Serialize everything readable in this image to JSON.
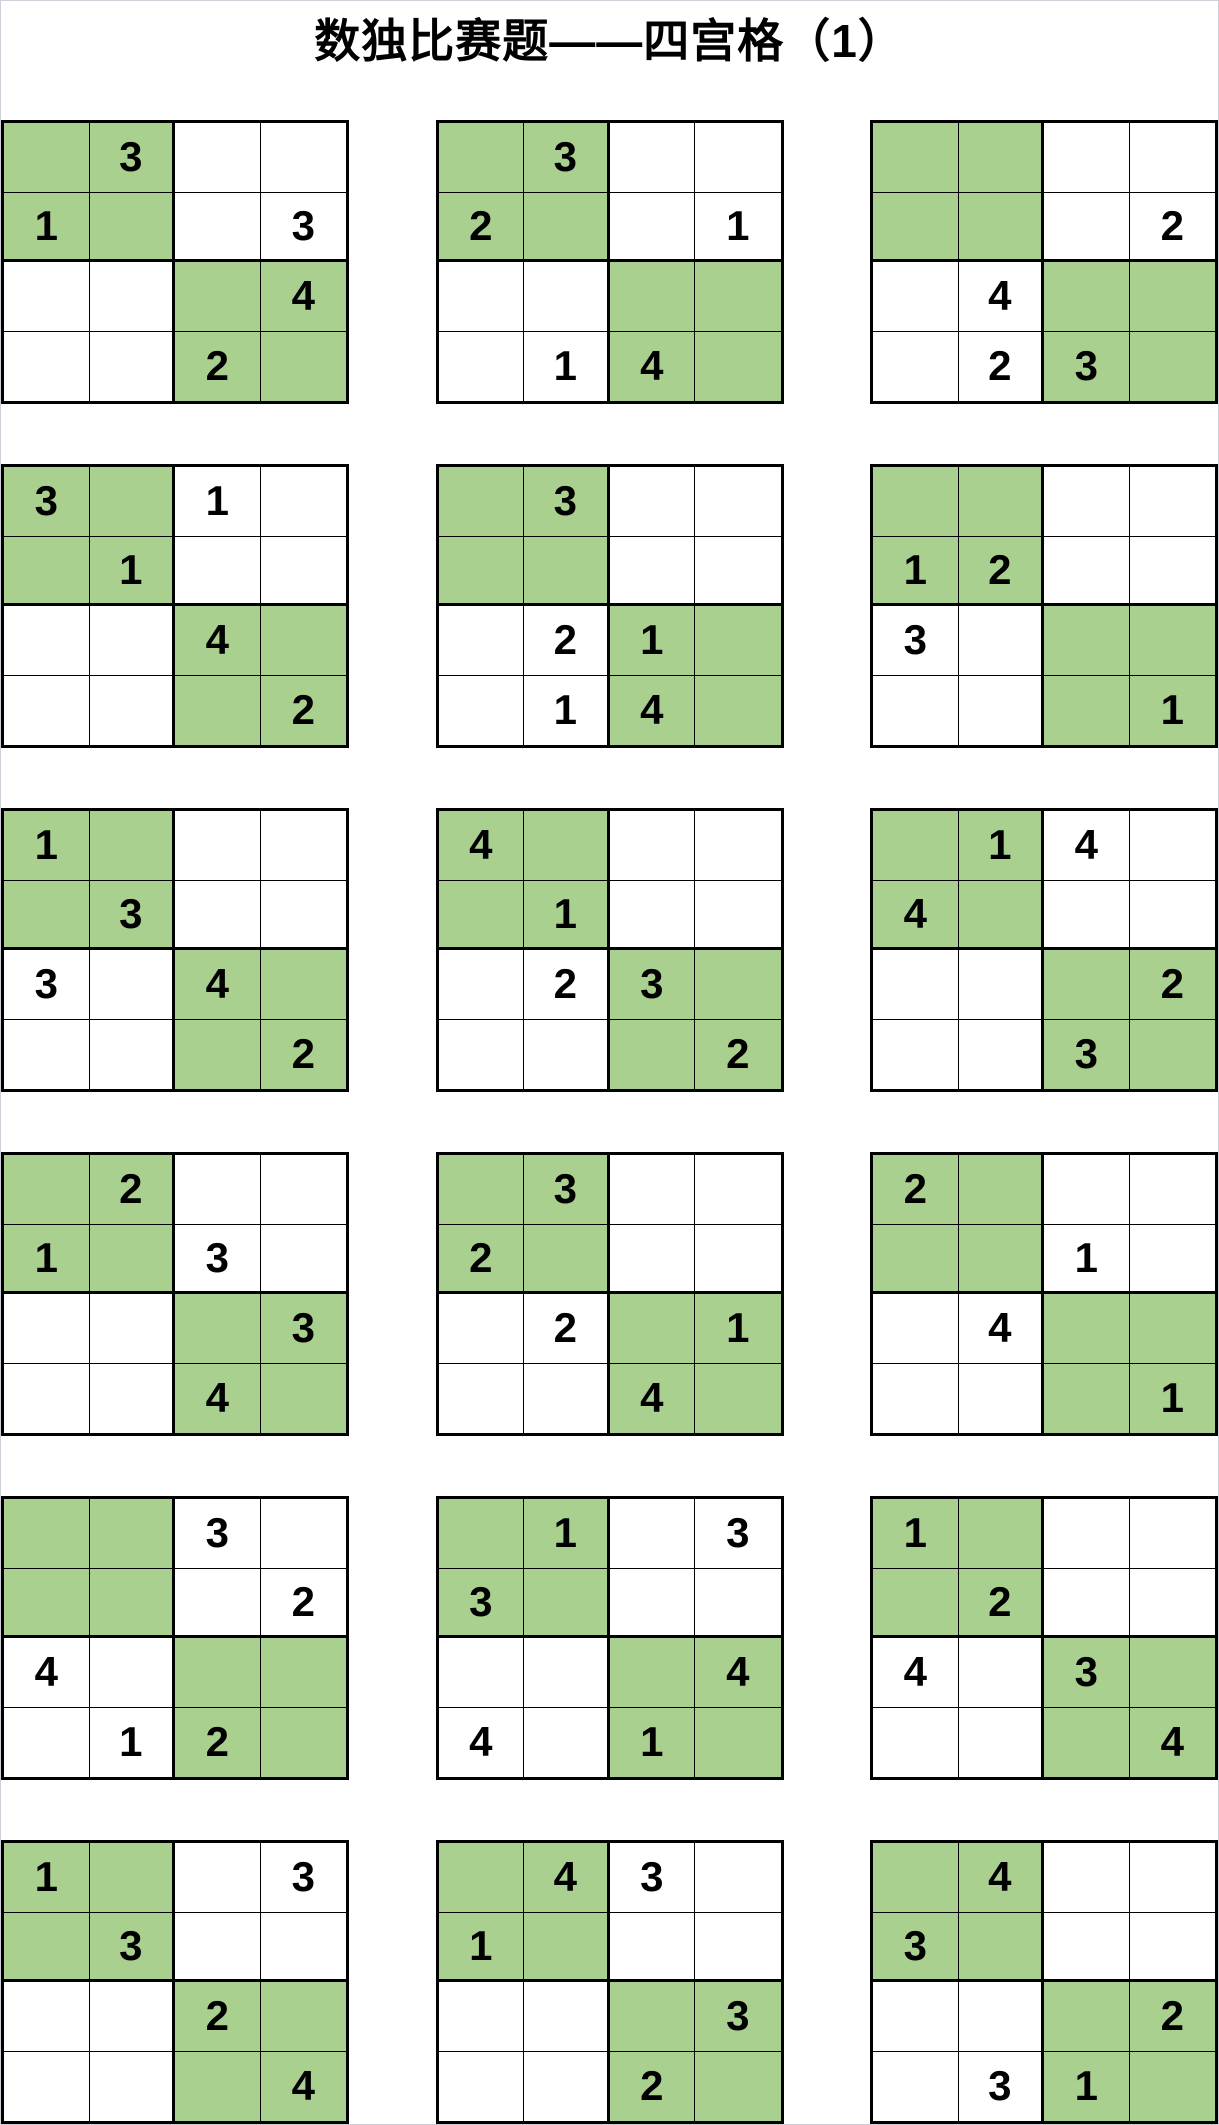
{
  "page": {
    "title": "数独比赛题——四宫格（1）"
  },
  "colors": {
    "cell_green": "#a9d08e",
    "grid_line": "#000000",
    "number": "#000000",
    "page_border": "#cfcfda"
  },
  "green_pattern": [
    [
      1,
      1,
      0,
      0
    ],
    [
      1,
      1,
      0,
      0
    ],
    [
      0,
      0,
      1,
      1
    ],
    [
      0,
      0,
      1,
      1
    ]
  ],
  "puzzles": [
    {
      "grid": [
        [
          "",
          "3",
          "",
          ""
        ],
        [
          "1",
          "",
          "",
          "3"
        ],
        [
          "",
          "",
          "",
          "4"
        ],
        [
          "",
          "",
          "2",
          ""
        ]
      ]
    },
    {
      "grid": [
        [
          "",
          "3",
          "",
          ""
        ],
        [
          "2",
          "",
          "",
          "1"
        ],
        [
          "",
          "",
          "",
          ""
        ],
        [
          "",
          "1",
          "4",
          ""
        ]
      ]
    },
    {
      "grid": [
        [
          "",
          "",
          "",
          ""
        ],
        [
          "",
          "",
          "",
          "2"
        ],
        [
          "",
          "4",
          "",
          ""
        ],
        [
          "",
          "2",
          "3",
          ""
        ]
      ]
    },
    {
      "grid": [
        [
          "3",
          "",
          "1",
          ""
        ],
        [
          "",
          "1",
          "",
          ""
        ],
        [
          "",
          "",
          "4",
          ""
        ],
        [
          "",
          "",
          "",
          "2"
        ]
      ]
    },
    {
      "grid": [
        [
          "",
          "3",
          "",
          ""
        ],
        [
          "",
          "",
          "",
          ""
        ],
        [
          "",
          "2",
          "1",
          ""
        ],
        [
          "",
          "1",
          "4",
          ""
        ]
      ]
    },
    {
      "grid": [
        [
          "",
          "",
          "",
          ""
        ],
        [
          "1",
          "2",
          "",
          ""
        ],
        [
          "3",
          "",
          "",
          ""
        ],
        [
          "",
          "",
          "",
          "1"
        ]
      ]
    },
    {
      "grid": [
        [
          "1",
          "",
          "",
          ""
        ],
        [
          "",
          "3",
          "",
          ""
        ],
        [
          "3",
          "",
          "4",
          ""
        ],
        [
          "",
          "",
          "",
          "2"
        ]
      ]
    },
    {
      "grid": [
        [
          "4",
          "",
          "",
          ""
        ],
        [
          "",
          "1",
          "",
          ""
        ],
        [
          "",
          "2",
          "3",
          ""
        ],
        [
          "",
          "",
          "",
          "2"
        ]
      ]
    },
    {
      "grid": [
        [
          "",
          "1",
          "4",
          ""
        ],
        [
          "4",
          "",
          "",
          ""
        ],
        [
          "",
          "",
          "",
          "2"
        ],
        [
          "",
          "",
          "3",
          ""
        ]
      ]
    },
    {
      "grid": [
        [
          "",
          "2",
          "",
          ""
        ],
        [
          "1",
          "",
          "3",
          ""
        ],
        [
          "",
          "",
          "",
          "3"
        ],
        [
          "",
          "",
          "4",
          ""
        ]
      ]
    },
    {
      "grid": [
        [
          "",
          "3",
          "",
          ""
        ],
        [
          "2",
          "",
          "",
          ""
        ],
        [
          "",
          "2",
          "",
          "1"
        ],
        [
          "",
          "",
          "4",
          ""
        ]
      ]
    },
    {
      "grid": [
        [
          "2",
          "",
          "",
          ""
        ],
        [
          "",
          "",
          "1",
          ""
        ],
        [
          "",
          "4",
          "",
          ""
        ],
        [
          "",
          "",
          "",
          "1"
        ]
      ]
    },
    {
      "grid": [
        [
          "",
          "",
          "3",
          ""
        ],
        [
          "",
          "",
          "",
          "2"
        ],
        [
          "4",
          "",
          "",
          ""
        ],
        [
          "",
          "1",
          "2",
          ""
        ]
      ]
    },
    {
      "grid": [
        [
          "",
          "1",
          "",
          "3"
        ],
        [
          "3",
          "",
          "",
          ""
        ],
        [
          "",
          "",
          "",
          "4"
        ],
        [
          "4",
          "",
          "1",
          ""
        ]
      ]
    },
    {
      "grid": [
        [
          "1",
          "",
          "",
          ""
        ],
        [
          "",
          "2",
          "",
          ""
        ],
        [
          "4",
          "",
          "3",
          ""
        ],
        [
          "",
          "",
          "",
          "4"
        ]
      ]
    },
    {
      "grid": [
        [
          "1",
          "",
          "",
          "3"
        ],
        [
          "",
          "3",
          "",
          ""
        ],
        [
          "",
          "",
          "2",
          ""
        ],
        [
          "",
          "",
          "",
          "4"
        ]
      ]
    },
    {
      "grid": [
        [
          "",
          "4",
          "3",
          ""
        ],
        [
          "1",
          "",
          "",
          ""
        ],
        [
          "",
          "",
          "",
          "3"
        ],
        [
          "",
          "",
          "2",
          ""
        ]
      ]
    },
    {
      "grid": [
        [
          "",
          "4",
          "",
          ""
        ],
        [
          "3",
          "",
          "",
          ""
        ],
        [
          "",
          "",
          "",
          "2"
        ],
        [
          "",
          "3",
          "1",
          ""
        ]
      ]
    }
  ]
}
